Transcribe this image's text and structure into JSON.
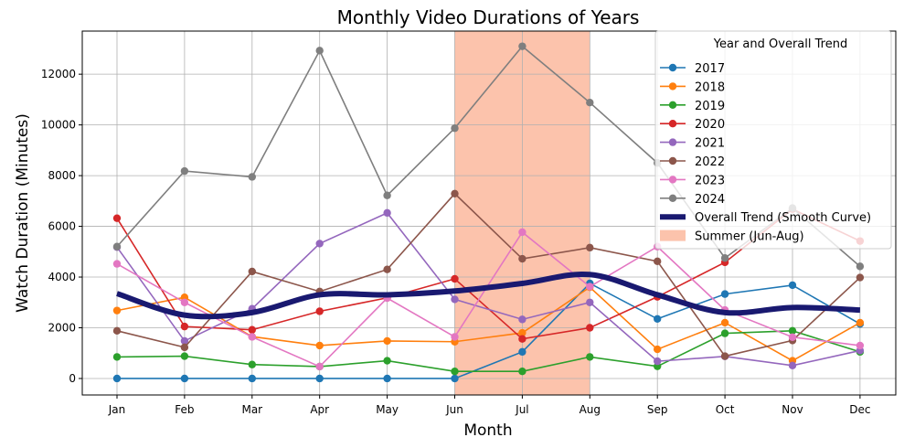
{
  "chart_data": {
    "type": "line",
    "title": "Monthly Video Durations of Years",
    "xlabel": "Month",
    "ylabel": "Watch Duration (Minutes)",
    "categories": [
      "Jan",
      "Feb",
      "Mar",
      "Apr",
      "May",
      "Jun",
      "Jul",
      "Aug",
      "Sep",
      "Oct",
      "Nov",
      "Dec"
    ],
    "ylim": [
      -650,
      13700
    ],
    "yticks": [
      0,
      2000,
      4000,
      6000,
      8000,
      10000,
      12000
    ],
    "grid": true,
    "legend": {
      "title": "Year and Overall Trend",
      "placement": "top-right"
    },
    "series": [
      {
        "name": "2017",
        "color": "#1f77b4",
        "values": [
          0,
          0,
          0,
          0,
          0,
          0,
          1050,
          3750,
          2350,
          3330,
          3680,
          2150
        ]
      },
      {
        "name": "2018",
        "color": "#ff7f0e",
        "values": [
          2680,
          3200,
          1650,
          1300,
          1480,
          1450,
          1800,
          3600,
          1150,
          2200,
          700,
          2200
        ]
      },
      {
        "name": "2019",
        "color": "#2ca02c",
        "values": [
          850,
          880,
          550,
          470,
          700,
          280,
          280,
          850,
          480,
          1780,
          1880,
          1050
        ]
      },
      {
        "name": "2020",
        "color": "#d62728",
        "values": [
          6320,
          2050,
          1920,
          2650,
          3180,
          3930,
          1560,
          2000,
          3220,
          4580,
          6680,
          5420
        ]
      },
      {
        "name": "2021",
        "color": "#9467bd",
        "values": [
          5180,
          1480,
          2750,
          5320,
          6530,
          3120,
          2330,
          3000,
          680,
          870,
          510,
          1100
        ]
      },
      {
        "name": "2022",
        "color": "#8c564b",
        "values": [
          1880,
          1230,
          4220,
          3430,
          4300,
          7290,
          4720,
          5160,
          4620,
          880,
          1500,
          3980
        ]
      },
      {
        "name": "2023",
        "color": "#e377c2",
        "values": [
          4520,
          3000,
          1640,
          470,
          3170,
          1640,
          5770,
          3620,
          5200,
          2700,
          1630,
          1300
        ]
      },
      {
        "name": "2024",
        "color": "#7f7f7f",
        "values": [
          5200,
          8180,
          7950,
          12930,
          7220,
          9870,
          13100,
          10880,
          8500,
          4750,
          6720,
          4420
        ]
      }
    ],
    "trend": {
      "name": "Overall Trend (Smooth Curve)",
      "color": "#191970",
      "values": [
        3350,
        2500,
        2600,
        3300,
        3300,
        3450,
        3750,
        4100,
        3300,
        2600,
        2800,
        2700
      ]
    },
    "shaded_region": {
      "name": "Summer (Jun-Aug)",
      "color": "#fcb89d",
      "from": "Jun",
      "to": "Aug"
    }
  }
}
